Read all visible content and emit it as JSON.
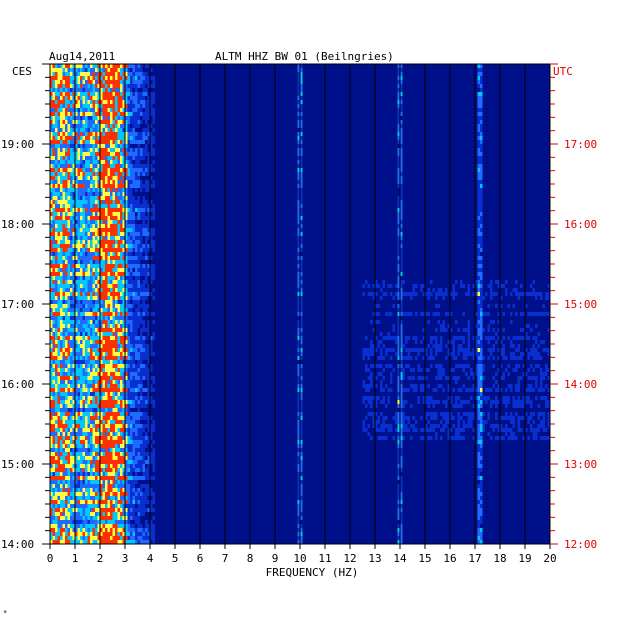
{
  "chart_data": {
    "type": "heatmap",
    "date": "Aug14,2011",
    "title": "ALTM HHZ BW 01 (Beilngries)",
    "left_tz": "CES",
    "right_tz": "UTC",
    "xlabel": "FREQUENCY (HZ)",
    "xlim": [
      0,
      20
    ],
    "x_ticks": [
      "0",
      "1",
      "2",
      "3",
      "4",
      "5",
      "6",
      "7",
      "8",
      "9",
      "10",
      "11",
      "12",
      "13",
      "14",
      "15",
      "16",
      "17",
      "18",
      "19",
      "20"
    ],
    "left_hour_ticks": [
      "19:00",
      "18:00",
      "17:00",
      "16:00",
      "15:00",
      "14:00"
    ],
    "right_hour_ticks": [
      "17:00",
      "16:00",
      "15:00",
      "14:00",
      "13:00",
      "12:00"
    ],
    "time_range_local_h": [
      14.0,
      20.0
    ],
    "colors": {
      "background": "#00108a",
      "grid": "#000000",
      "utc_axis": "#e00000",
      "palette": [
        "#00108a",
        "#0a2fd0",
        "#1f6bff",
        "#00c8ff",
        "#ffff40",
        "#ff3000"
      ]
    },
    "events": [
      {
        "time_local": "17:09",
        "note": "broadband line"
      },
      {
        "freq_hz": 10.0,
        "note": "narrow line"
      },
      {
        "freq_hz": 14.0,
        "note": "narrow line"
      },
      {
        "freq_hz": 17.2,
        "note": "narrow line"
      }
    ]
  },
  "footer_mark": "*"
}
